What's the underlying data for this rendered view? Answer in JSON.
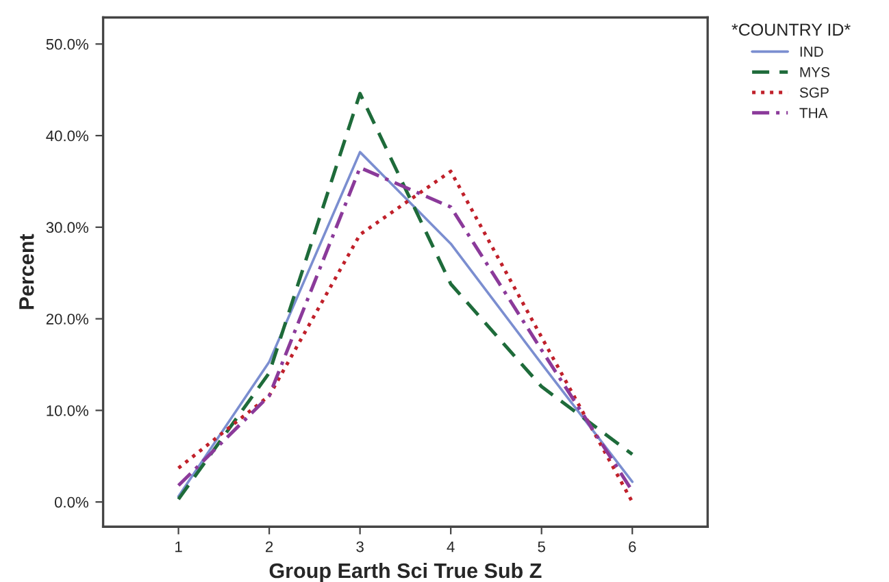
{
  "chart_data": {
    "type": "line",
    "xlabel": "Group Earth Sci True Sub Z",
    "ylabel": "Percent",
    "legend_title": "*COUNTRY ID*",
    "legend": "top right",
    "x": [
      1,
      2,
      3,
      4,
      5,
      6
    ],
    "xlim": [
      0.17,
      6.83
    ],
    "xticks": [
      1,
      2,
      3,
      4,
      5,
      6
    ],
    "ylim": [
      -2.7,
      52.9
    ],
    "yticks": [
      {
        "value": 0,
        "label": "0.0%"
      },
      {
        "value": 10,
        "label": "10.0%"
      },
      {
        "value": 20,
        "label": "20.0%"
      },
      {
        "value": 30,
        "label": "30.0%"
      },
      {
        "value": 40,
        "label": "40.0%"
      },
      {
        "value": 50,
        "label": "50.0%"
      }
    ],
    "grid": false,
    "marker": "none",
    "series": [
      {
        "name": "IND",
        "color": "#7b8ed0",
        "line_style": "solid",
        "values": [
          0.6,
          15.3,
          38.2,
          28.2,
          15.1,
          2.2
        ]
      },
      {
        "name": "MYS",
        "color": "#1e6b3a",
        "line_style": "dashed",
        "values": [
          0.3,
          14.1,
          44.6,
          23.8,
          12.6,
          5.2
        ]
      },
      {
        "name": "SGP",
        "color": "#c0202a",
        "line_style": "dotted",
        "values": [
          3.7,
          11.6,
          29.2,
          36.1,
          18.0,
          0.0
        ]
      },
      {
        "name": "THA",
        "color": "#8b3a9a",
        "line_style": "dashdot",
        "values": [
          1.8,
          11.6,
          36.5,
          32.2,
          16.6,
          1.2
        ]
      }
    ]
  }
}
